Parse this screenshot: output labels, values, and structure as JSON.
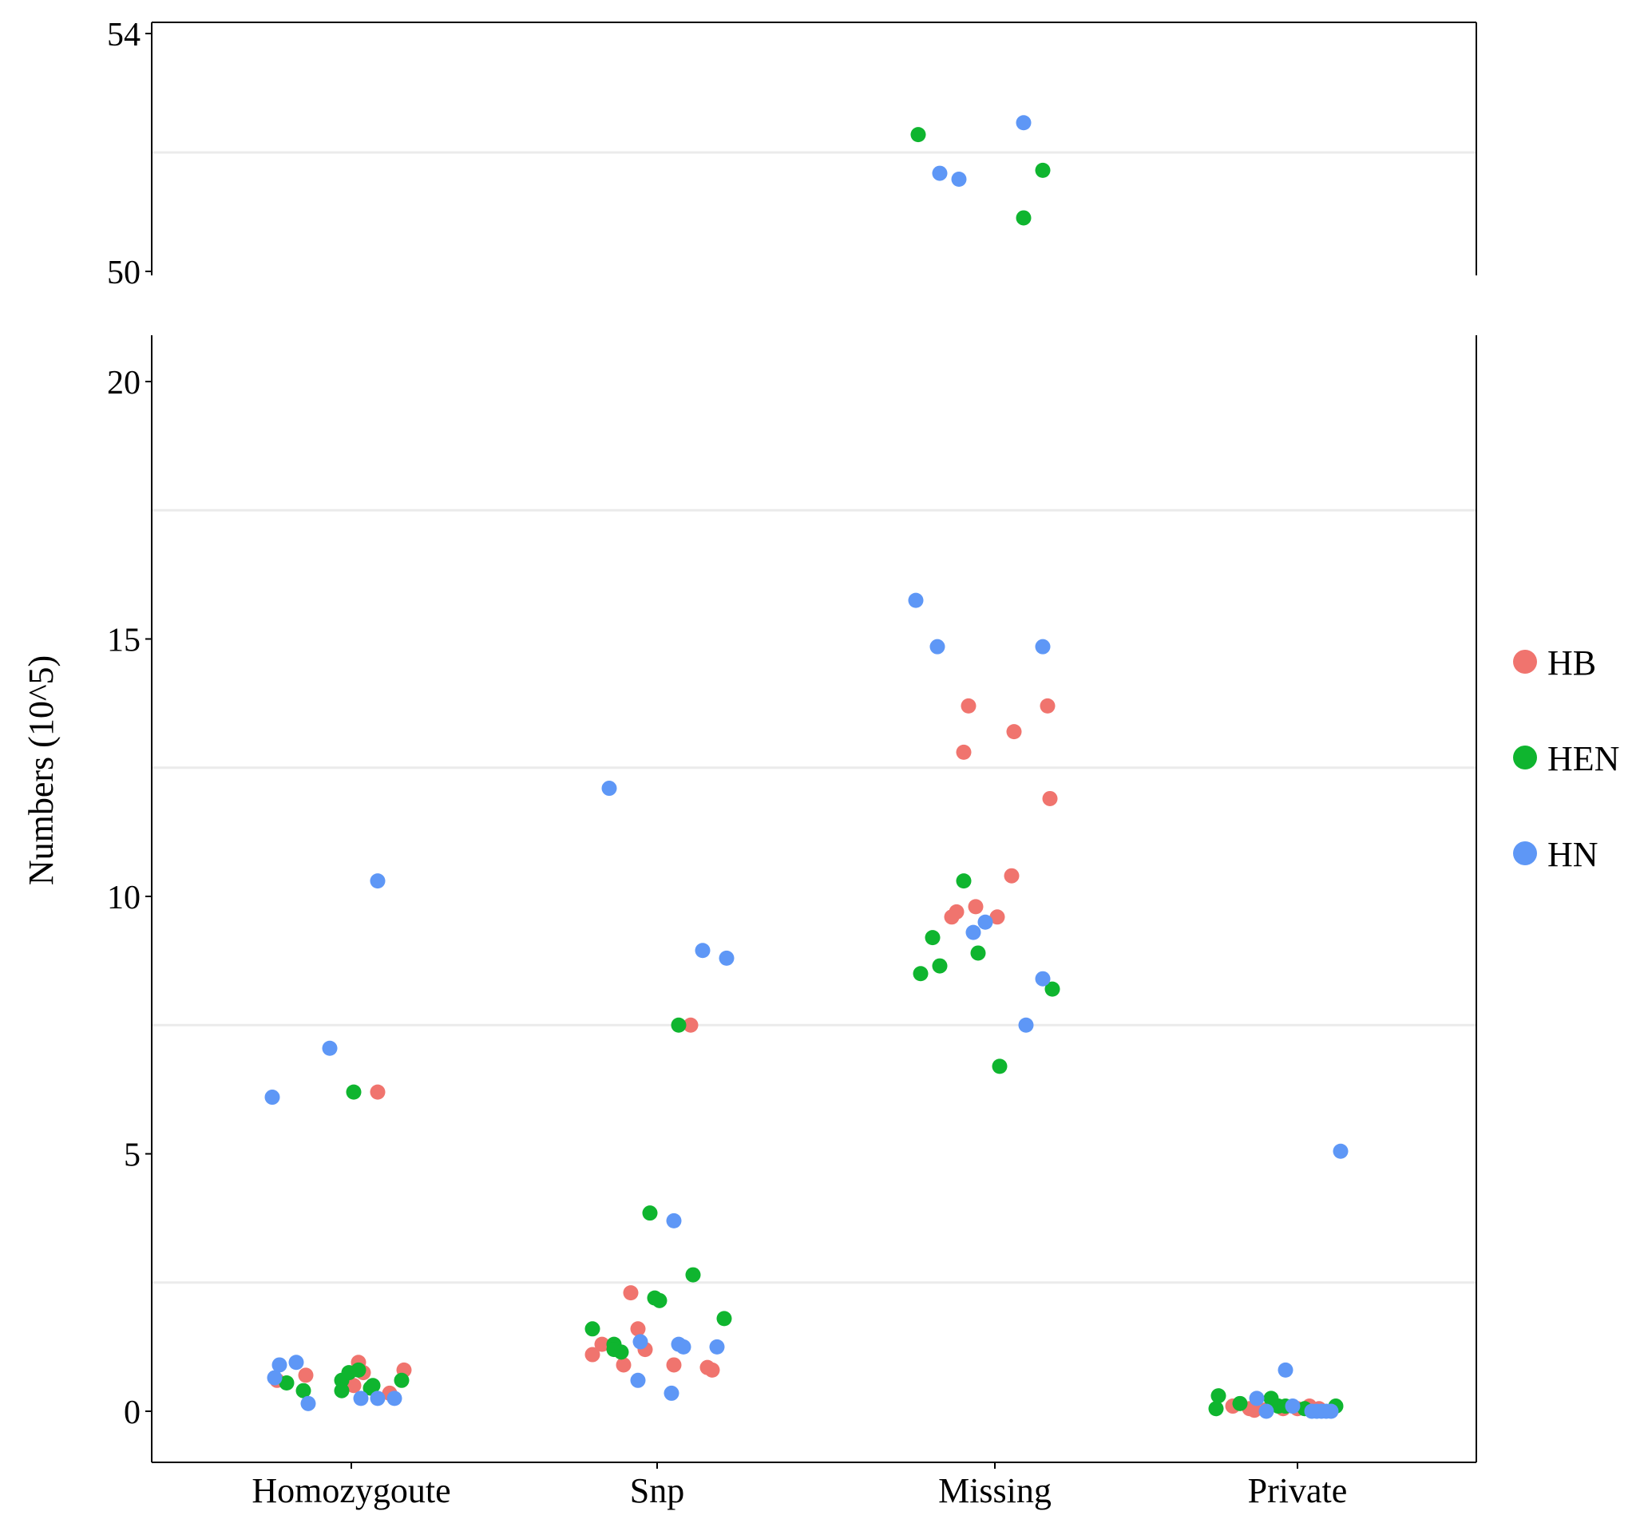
{
  "chart_data": {
    "type": "scatter",
    "categories": [
      "Homozygoute",
      "Snp",
      "Missing",
      "Private"
    ],
    "ylabel": "Numbers (10^5)",
    "xlabel": "",
    "axis_break": true,
    "upper_panel": {
      "ylim": [
        50,
        54
      ],
      "ticks": [
        50,
        54
      ],
      "gridlines": [
        52
      ]
    },
    "lower_panel": {
      "ylim": [
        -1,
        21
      ],
      "ticks": [
        0,
        5,
        10,
        15,
        20
      ],
      "gridlines": [
        2.5,
        7.5,
        12.5,
        17.5
      ]
    },
    "grid": "horizontal light gray",
    "legend": {
      "placement": "right",
      "entries": [
        "HB",
        "HEN",
        "HN"
      ]
    },
    "colors": {
      "HB": "#F0746E",
      "HEN": "#0FB52F",
      "HN": "#5E97F6"
    },
    "series": [
      {
        "name": "HB",
        "points": [
          {
            "category": "Homozygoute",
            "jitter": -0.31,
            "y": 0.6
          },
          {
            "category": "Homozygoute",
            "jitter": -0.19,
            "y": 0.7
          },
          {
            "category": "Homozygoute",
            "jitter": 0.03,
            "y": 0.95
          },
          {
            "category": "Homozygoute",
            "jitter": 0.05,
            "y": 0.75
          },
          {
            "category": "Homozygoute",
            "jitter": 0.01,
            "y": 0.5
          },
          {
            "category": "Homozygoute",
            "jitter": 0.11,
            "y": 6.2
          },
          {
            "category": "Homozygoute",
            "jitter": 0.16,
            "y": 0.35
          },
          {
            "category": "Homozygoute",
            "jitter": 0.22,
            "y": 0.8
          },
          {
            "category": "Snp",
            "jitter": -0.27,
            "y": 1.1
          },
          {
            "category": "Snp",
            "jitter": -0.23,
            "y": 1.3
          },
          {
            "category": "Snp",
            "jitter": -0.14,
            "y": 0.9
          },
          {
            "category": "Snp",
            "jitter": -0.11,
            "y": 2.3
          },
          {
            "category": "Snp",
            "jitter": -0.08,
            "y": 1.6
          },
          {
            "category": "Snp",
            "jitter": -0.05,
            "y": 1.2
          },
          {
            "category": "Snp",
            "jitter": 0.07,
            "y": 0.9
          },
          {
            "category": "Snp",
            "jitter": 0.14,
            "y": 7.5
          },
          {
            "category": "Snp",
            "jitter": 0.21,
            "y": 0.85
          },
          {
            "category": "Snp",
            "jitter": 0.23,
            "y": 0.8
          },
          {
            "category": "Missing",
            "jitter": -0.18,
            "y": 9.6
          },
          {
            "category": "Missing",
            "jitter": -0.16,
            "y": 9.7
          },
          {
            "category": "Missing",
            "jitter": -0.13,
            "y": 12.8
          },
          {
            "category": "Missing",
            "jitter": -0.11,
            "y": 13.7
          },
          {
            "category": "Missing",
            "jitter": -0.08,
            "y": 9.8
          },
          {
            "category": "Missing",
            "jitter": 0.01,
            "y": 9.6
          },
          {
            "category": "Missing",
            "jitter": 0.07,
            "y": 10.4
          },
          {
            "category": "Missing",
            "jitter": 0.08,
            "y": 13.2
          },
          {
            "category": "Missing",
            "jitter": 0.22,
            "y": 13.7
          },
          {
            "category": "Missing",
            "jitter": 0.23,
            "y": 11.9
          },
          {
            "category": "Private",
            "jitter": -0.27,
            "y": 0.1
          },
          {
            "category": "Private",
            "jitter": -0.2,
            "y": 0.05
          },
          {
            "category": "Private",
            "jitter": -0.18,
            "y": 0.02
          },
          {
            "category": "Private",
            "jitter": -0.13,
            "y": 0.03
          },
          {
            "category": "Private",
            "jitter": -0.06,
            "y": 0.05
          },
          {
            "category": "Private",
            "jitter": 0.0,
            "y": 0.05
          },
          {
            "category": "Private",
            "jitter": 0.05,
            "y": 0.1
          },
          {
            "category": "Private",
            "jitter": 0.09,
            "y": 0.05
          }
        ]
      },
      {
        "name": "HEN",
        "points": [
          {
            "category": "Homozygoute",
            "jitter": -0.27,
            "y": 0.55
          },
          {
            "category": "Homozygoute",
            "jitter": -0.2,
            "y": 0.4
          },
          {
            "category": "Homozygoute",
            "jitter": -0.04,
            "y": 0.6
          },
          {
            "category": "Homozygoute",
            "jitter": -0.04,
            "y": 0.4
          },
          {
            "category": "Homozygoute",
            "jitter": -0.01,
            "y": 0.75
          },
          {
            "category": "Homozygoute",
            "jitter": 0.01,
            "y": 6.2
          },
          {
            "category": "Homozygoute",
            "jitter": 0.03,
            "y": 0.8
          },
          {
            "category": "Homozygoute",
            "jitter": 0.08,
            "y": 0.45
          },
          {
            "category": "Homozygoute",
            "jitter": 0.09,
            "y": 0.5
          },
          {
            "category": "Homozygoute",
            "jitter": 0.21,
            "y": 0.6
          },
          {
            "category": "Snp",
            "jitter": -0.27,
            "y": 1.6
          },
          {
            "category": "Snp",
            "jitter": -0.18,
            "y": 1.3
          },
          {
            "category": "Snp",
            "jitter": -0.18,
            "y": 1.2
          },
          {
            "category": "Snp",
            "jitter": -0.15,
            "y": 1.15
          },
          {
            "category": "Snp",
            "jitter": -0.03,
            "y": 3.85
          },
          {
            "category": "Snp",
            "jitter": -0.01,
            "y": 2.2
          },
          {
            "category": "Snp",
            "jitter": 0.01,
            "y": 2.15
          },
          {
            "category": "Snp",
            "jitter": 0.09,
            "y": 7.5
          },
          {
            "category": "Snp",
            "jitter": 0.15,
            "y": 2.65
          },
          {
            "category": "Snp",
            "jitter": 0.28,
            "y": 1.8
          },
          {
            "category": "Missing",
            "jitter": -0.31,
            "y": 8.5
          },
          {
            "category": "Missing",
            "jitter": -0.26,
            "y": 9.2
          },
          {
            "category": "Missing",
            "jitter": -0.23,
            "y": 8.65
          },
          {
            "category": "Missing",
            "jitter": -0.13,
            "y": 10.3
          },
          {
            "category": "Missing",
            "jitter": -0.07,
            "y": 8.9
          },
          {
            "category": "Missing",
            "jitter": 0.02,
            "y": 6.7
          },
          {
            "category": "Missing",
            "jitter": 0.24,
            "y": 8.2
          },
          {
            "category": "Missing",
            "jitter": -0.32,
            "y": 52.3
          },
          {
            "category": "Missing",
            "jitter": 0.12,
            "y": 50.9
          },
          {
            "category": "Missing",
            "jitter": 0.2,
            "y": 51.7
          },
          {
            "category": "Private",
            "jitter": -0.34,
            "y": 0.05
          },
          {
            "category": "Private",
            "jitter": -0.33,
            "y": 0.3
          },
          {
            "category": "Private",
            "jitter": -0.24,
            "y": 0.15
          },
          {
            "category": "Private",
            "jitter": -0.11,
            "y": 0.25
          },
          {
            "category": "Private",
            "jitter": -0.08,
            "y": 0.1
          },
          {
            "category": "Private",
            "jitter": -0.05,
            "y": 0.1
          },
          {
            "category": "Private",
            "jitter": 0.03,
            "y": 0.05
          },
          {
            "category": "Private",
            "jitter": 0.16,
            "y": 0.1
          }
        ]
      },
      {
        "name": "HN",
        "points": [
          {
            "category": "Homozygoute",
            "jitter": -0.33,
            "y": 6.1
          },
          {
            "category": "Homozygoute",
            "jitter": -0.32,
            "y": 0.65
          },
          {
            "category": "Homozygoute",
            "jitter": -0.3,
            "y": 0.9
          },
          {
            "category": "Homozygoute",
            "jitter": -0.23,
            "y": 0.95
          },
          {
            "category": "Homozygoute",
            "jitter": -0.18,
            "y": 0.15
          },
          {
            "category": "Homozygoute",
            "jitter": -0.09,
            "y": 7.05
          },
          {
            "category": "Homozygoute",
            "jitter": 0.04,
            "y": 0.25
          },
          {
            "category": "Homozygoute",
            "jitter": 0.11,
            "y": 10.3
          },
          {
            "category": "Homozygoute",
            "jitter": 0.11,
            "y": 0.25
          },
          {
            "category": "Homozygoute",
            "jitter": 0.18,
            "y": 0.25
          },
          {
            "category": "Snp",
            "jitter": -0.2,
            "y": 12.1
          },
          {
            "category": "Snp",
            "jitter": -0.08,
            "y": 0.6
          },
          {
            "category": "Snp",
            "jitter": -0.07,
            "y": 1.35
          },
          {
            "category": "Snp",
            "jitter": 0.06,
            "y": 0.35
          },
          {
            "category": "Snp",
            "jitter": 0.07,
            "y": 3.7
          },
          {
            "category": "Snp",
            "jitter": 0.09,
            "y": 1.3
          },
          {
            "category": "Snp",
            "jitter": 0.11,
            "y": 1.25
          },
          {
            "category": "Snp",
            "jitter": 0.19,
            "y": 8.95
          },
          {
            "category": "Snp",
            "jitter": 0.25,
            "y": 1.25
          },
          {
            "category": "Snp",
            "jitter": 0.29,
            "y": 8.8
          },
          {
            "category": "Missing",
            "jitter": -0.33,
            "y": 15.75
          },
          {
            "category": "Missing",
            "jitter": -0.24,
            "y": 14.85
          },
          {
            "category": "Missing",
            "jitter": -0.09,
            "y": 9.3
          },
          {
            "category": "Missing",
            "jitter": -0.04,
            "y": 9.5
          },
          {
            "category": "Missing",
            "jitter": 0.13,
            "y": 7.5
          },
          {
            "category": "Missing",
            "jitter": 0.2,
            "y": 8.4
          },
          {
            "category": "Missing",
            "jitter": 0.2,
            "y": 14.85
          },
          {
            "category": "Missing",
            "jitter": -0.23,
            "y": 51.65
          },
          {
            "category": "Missing",
            "jitter": -0.15,
            "y": 51.55
          },
          {
            "category": "Missing",
            "jitter": 0.12,
            "y": 52.5
          },
          {
            "category": "Private",
            "jitter": -0.17,
            "y": 0.25
          },
          {
            "category": "Private",
            "jitter": -0.13,
            "y": 0.0
          },
          {
            "category": "Private",
            "jitter": -0.05,
            "y": 0.8
          },
          {
            "category": "Private",
            "jitter": -0.02,
            "y": 0.1
          },
          {
            "category": "Private",
            "jitter": 0.06,
            "y": 0.0
          },
          {
            "category": "Private",
            "jitter": 0.08,
            "y": 0.0
          },
          {
            "category": "Private",
            "jitter": 0.1,
            "y": 0.0
          },
          {
            "category": "Private",
            "jitter": 0.12,
            "y": 0.0
          },
          {
            "category": "Private",
            "jitter": 0.14,
            "y": 0.0
          },
          {
            "category": "Private",
            "jitter": 0.18,
            "y": 5.05
          }
        ]
      }
    ]
  }
}
